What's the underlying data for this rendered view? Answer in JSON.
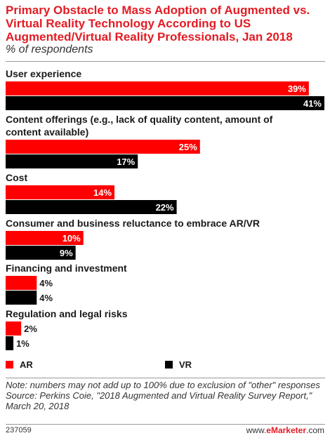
{
  "header": {
    "title": "Primary Obstacle to Mass Adoption of Augmented vs. Virtual Reality Technology According to US Augmented/Virtual Reality Professionals, Jan 2018",
    "subtitle": "% of respondents"
  },
  "chart_data": {
    "type": "bar",
    "orientation": "horizontal",
    "title": "Primary Obstacle to Mass Adoption of Augmented vs. Virtual Reality Technology According to US Augmented/Virtual Reality Professionals, Jan 2018",
    "subtitle": "% of respondents",
    "unit": "%",
    "categories": [
      "User experience",
      "Content offerings (e.g., lack of quality content, amount of content available)",
      "Cost",
      "Consumer and business reluctance to embrace AR/VR",
      "Financing and investment",
      "Regulation and legal risks"
    ],
    "category_lines": [
      [
        "User experience"
      ],
      [
        "Content offerings (e.g., lack of quality content, amount of",
        "content available)"
      ],
      [
        "Cost"
      ],
      [
        "Consumer and business reluctance to embrace AR/VR"
      ],
      [
        "Financing and investment"
      ],
      [
        "Regulation and legal risks"
      ]
    ],
    "series": [
      {
        "name": "AR",
        "color": "#ff0000",
        "values": [
          39,
          25,
          14,
          10,
          4,
          2
        ]
      },
      {
        "name": "VR",
        "color": "#000000",
        "values": [
          41,
          17,
          22,
          9,
          4,
          1
        ]
      }
    ],
    "xlim": [
      0,
      41
    ],
    "grid": false,
    "legend": "bottom"
  },
  "legend": {
    "ar": {
      "label": "AR",
      "color": "#ff0000"
    },
    "vr": {
      "label": "VR",
      "color": "#000000"
    }
  },
  "notes": {
    "note": "Note: numbers may not add up to 100% due to exclusion of \"other\" responses",
    "source": "Source: Perkins Coie, \"2018 Augmented and Virtual Reality Survey Report,\" March 20, 2018"
  },
  "footer": {
    "chart_id": "237059",
    "brand_prefix": "www.",
    "brand_name": "eMarketer",
    "brand_suffix": ".com"
  }
}
